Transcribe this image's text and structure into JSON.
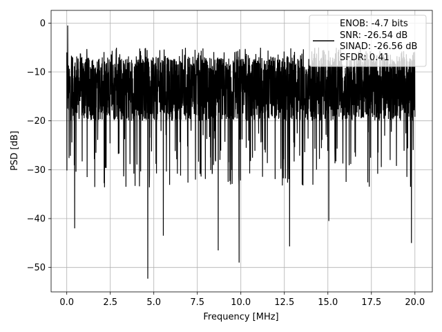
{
  "chart_data": {
    "type": "line",
    "title": "",
    "xlabel": "Frequency [MHz]",
    "ylabel": "PSD [dB]",
    "xlim": [
      -0.9,
      21.0
    ],
    "ylim": [
      -55.0,
      2.6
    ],
    "xticks": [
      0.0,
      2.5,
      5.0,
      7.5,
      10.0,
      12.5,
      15.0,
      17.5,
      20.0
    ],
    "xtick_labels": [
      "0.0",
      "2.5",
      "5.0",
      "7.5",
      "10.0",
      "12.5",
      "15.0",
      "17.5",
      "20.0"
    ],
    "yticks": [
      0,
      -10,
      -20,
      -30,
      -40,
      -50
    ],
    "ytick_labels": [
      "0",
      "−10",
      "−20",
      "−30",
      "−40",
      "−50"
    ],
    "grid": true,
    "legend": {
      "placement": "upper-right",
      "entries": [
        "ENOB: -4.7 bits",
        "SNR: -26.54 dB",
        "SINAD: -26.56 dB",
        "SFDR: 0.41"
      ]
    },
    "series": [
      {
        "color": "#000000",
        "x_range": [
          0.0,
          20.0
        ],
        "typical_range_db": [
          -20,
          -7
        ],
        "upper_envelope_db": -5,
        "max_peak": {
          "x": 0.05,
          "y": -0.5
        },
        "notable_dips": [
          {
            "x": 0.45,
            "y": -42
          },
          {
            "x": 4.65,
            "y": -52.3
          },
          {
            "x": 5.55,
            "y": -43.5
          },
          {
            "x": 8.7,
            "y": -46.5
          },
          {
            "x": 9.9,
            "y": -49
          },
          {
            "x": 12.8,
            "y": -45.7
          },
          {
            "x": 15.05,
            "y": -40.5
          },
          {
            "x": 19.8,
            "y": -45
          }
        ]
      }
    ]
  }
}
